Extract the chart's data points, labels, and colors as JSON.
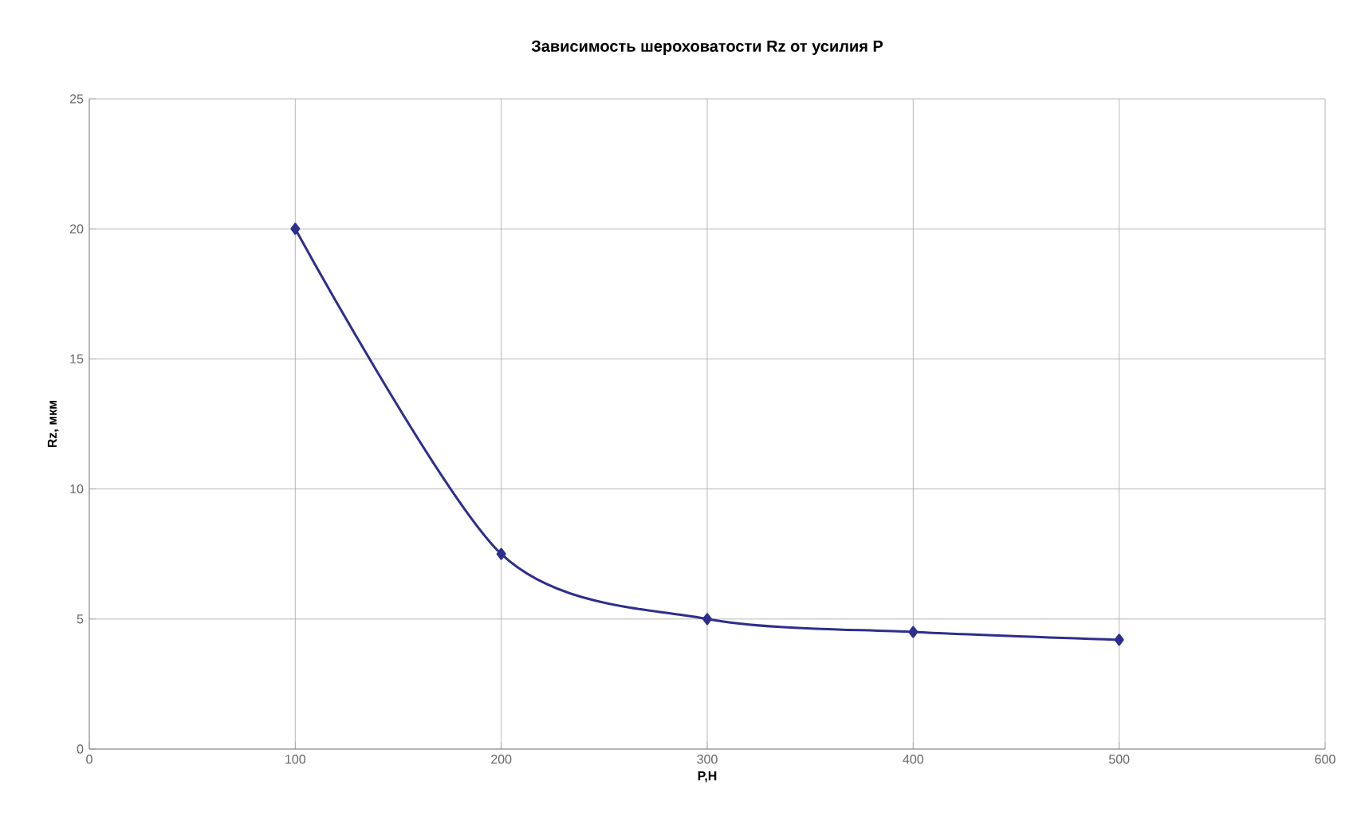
{
  "chart_data": {
    "type": "line",
    "title": "Зависимость шероховатости Rz от усилия P",
    "xlabel": "P,Н",
    "ylabel": "Rz, мкм",
    "x": [
      100,
      200,
      300,
      400,
      500
    ],
    "series": [
      {
        "color": "#2e2e8c",
        "values": [
          20,
          7.5,
          5,
          4.5,
          4.2
        ]
      }
    ],
    "xlim": [
      0,
      600
    ],
    "xticks": [
      0,
      100,
      200,
      300,
      400,
      500,
      600
    ],
    "ylim": [
      0,
      25
    ],
    "yticks": [
      0,
      5,
      10,
      15,
      20,
      25
    ],
    "grid": true,
    "marker": "diamond",
    "line_style": "solid"
  }
}
